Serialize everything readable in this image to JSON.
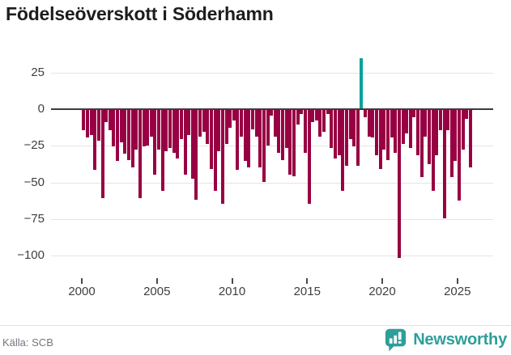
{
  "title": "Födelseöverskott i Söderhamn",
  "source": {
    "label": "Källa: SCB"
  },
  "branding": {
    "name": "Newsworthy",
    "icon": "newsworthy-bubble-barchart-icon",
    "color": "#2e9e9a"
  },
  "colors": {
    "bar": "#980043",
    "highlight": "#00a29c",
    "zero_line": "#3c3c3c",
    "grid": "#e4e4e4",
    "axis_text": "#3f3f3f",
    "source_text": "#75757f"
  },
  "chart_data": {
    "type": "bar",
    "title": "Födelseöverskott i Söderhamn",
    "x_start_year": 2000,
    "periods_per_year": 4,
    "values": [
      -14,
      -19,
      -17,
      -41,
      -21,
      -60,
      -8,
      -14,
      -25,
      -35,
      -22,
      -30,
      -34,
      -39,
      -27,
      -60,
      -25,
      -24,
      -18,
      -44,
      -27,
      -55,
      -28,
      -26,
      -29,
      -33,
      -20,
      -44,
      -17,
      -47,
      -61,
      -18,
      -15,
      -23,
      -40,
      -55,
      -28,
      -64,
      -23,
      -12,
      -7,
      -41,
      -18,
      -35,
      -39,
      -13,
      -18,
      -39,
      -49,
      -24,
      -4,
      -18,
      -29,
      -34,
      -26,
      -44,
      -45,
      -10,
      -3,
      -29,
      -64,
      -8,
      -7,
      -18,
      -15,
      -3,
      -26,
      -33,
      -31,
      -55,
      -38,
      -20,
      -25,
      -38,
      35,
      -5,
      -18,
      -19,
      -31,
      -40,
      -27,
      -34,
      -19,
      -29,
      -101,
      -23,
      -16,
      -26,
      -5,
      -31,
      -46,
      -18,
      -37,
      -55,
      -31,
      -14,
      -74,
      -14,
      -46,
      -35,
      -62,
      -27,
      -6,
      -39
    ],
    "highlight_index": 74,
    "highlight_value": 35,
    "min_value": -101,
    "y_ticks": [
      25,
      0,
      -25,
      -50,
      -75,
      -100
    ],
    "x_ticks": [
      "2000",
      "2005",
      "2010",
      "2015",
      "2020",
      "2025"
    ],
    "ylim": [
      -110,
      37
    ],
    "grid": true,
    "legend_position": "none",
    "xlabel": "",
    "ylabel": ""
  }
}
